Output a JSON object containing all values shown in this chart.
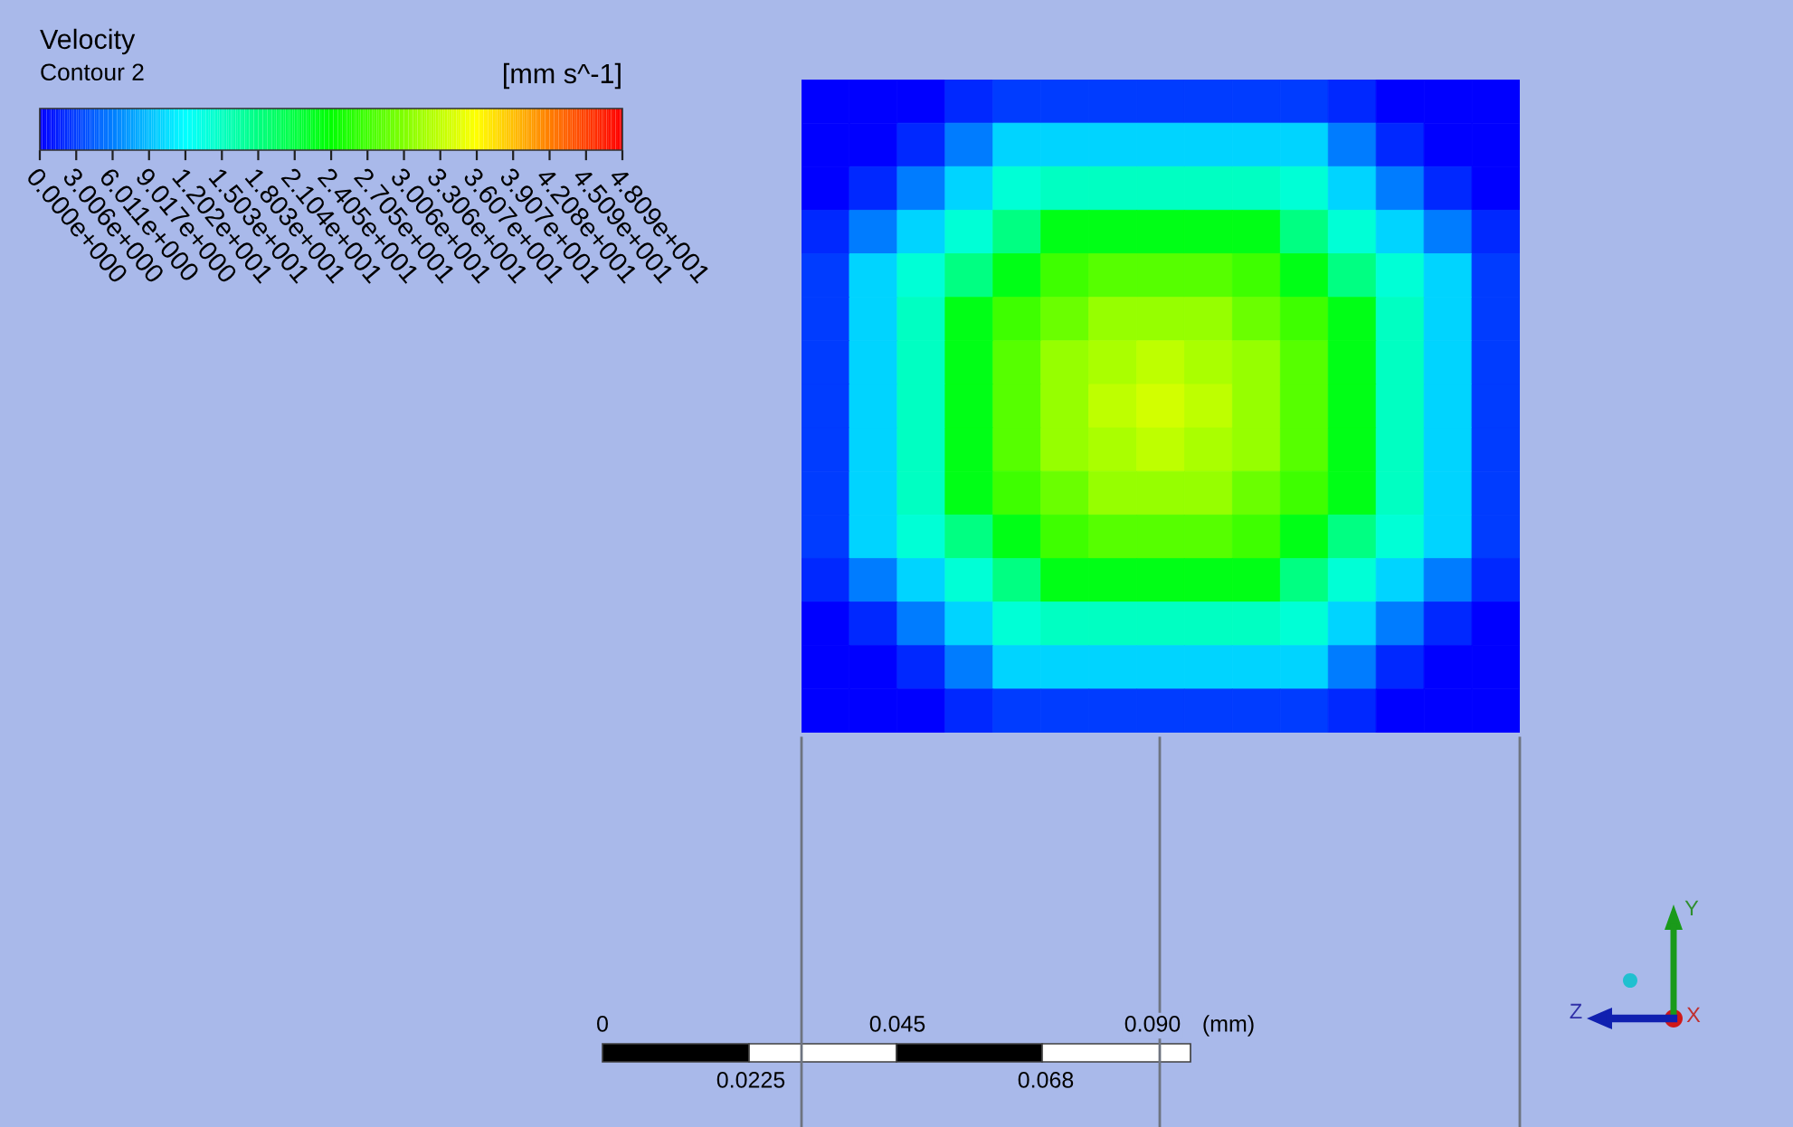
{
  "chart_data": {
    "type": "heatmap",
    "title": "Velocity",
    "subtitle": "Contour 2",
    "clabel": "[mm s^-1]",
    "categories": [
      null,
      null,
      null,
      null,
      null,
      null,
      null,
      null,
      null,
      null,
      null,
      null,
      null,
      null,
      null
    ],
    "y_categories": [
      null,
      null,
      null,
      null,
      null,
      null,
      null,
      null,
      null,
      null,
      null,
      null,
      null,
      null,
      null
    ],
    "cells": [
      [
        0,
        0,
        0,
        2,
        3,
        3,
        3,
        3,
        3,
        3,
        3,
        2,
        0,
        0,
        0
      ],
      [
        0,
        0,
        2,
        6,
        10,
        10,
        10,
        10,
        10,
        10,
        10,
        6,
        2,
        0,
        0
      ],
      [
        0,
        2,
        6,
        10,
        14,
        15,
        15,
        15,
        15,
        15,
        14,
        10,
        6,
        2,
        0
      ],
      [
        2,
        6,
        10,
        14,
        18,
        23,
        23,
        23,
        23,
        23,
        18,
        14,
        10,
        6,
        2
      ],
      [
        3,
        10,
        14,
        18,
        23,
        27,
        28,
        28,
        28,
        27,
        23,
        18,
        14,
        10,
        3
      ],
      [
        3,
        10,
        15,
        23,
        27,
        29,
        31,
        31,
        31,
        29,
        27,
        23,
        15,
        10,
        3
      ],
      [
        3,
        10,
        15,
        23,
        28,
        31,
        32,
        33,
        32,
        31,
        28,
        23,
        15,
        10,
        3
      ],
      [
        3,
        10,
        15,
        23,
        28,
        31,
        33,
        34,
        33,
        31,
        28,
        23,
        15,
        10,
        3
      ],
      [
        3,
        10,
        15,
        23,
        28,
        31,
        32,
        33,
        32,
        31,
        28,
        23,
        15,
        10,
        3
      ],
      [
        3,
        10,
        15,
        23,
        27,
        29,
        31,
        31,
        31,
        29,
        27,
        23,
        15,
        10,
        3
      ],
      [
        3,
        10,
        14,
        18,
        23,
        27,
        28,
        28,
        28,
        27,
        23,
        18,
        14,
        10,
        3
      ],
      [
        2,
        6,
        10,
        14,
        18,
        23,
        23,
        23,
        23,
        23,
        18,
        14,
        10,
        6,
        2
      ],
      [
        0,
        2,
        6,
        10,
        14,
        15,
        15,
        15,
        15,
        15,
        14,
        10,
        6,
        2,
        0
      ],
      [
        0,
        0,
        2,
        6,
        10,
        10,
        10,
        10,
        10,
        10,
        10,
        6,
        2,
        0,
        0
      ],
      [
        0,
        0,
        0,
        2,
        3,
        3,
        3,
        3,
        3,
        3,
        3,
        2,
        0,
        0,
        0
      ]
    ],
    "clim": [
      0,
      48.09
    ],
    "cticks": [
      {
        "value": 0,
        "label": "0.000e+000"
      },
      {
        "value": 3.006,
        "label": "3.006e+000"
      },
      {
        "value": 6.011,
        "label": "6.011e+000"
      },
      {
        "value": 9.017,
        "label": "9.017e+000"
      },
      {
        "value": 12.02,
        "label": "1.202e+001"
      },
      {
        "value": 15.03,
        "label": "1.503e+001"
      },
      {
        "value": 18.03,
        "label": "1.803e+001"
      },
      {
        "value": 21.04,
        "label": "2.104e+001"
      },
      {
        "value": 24.05,
        "label": "2.405e+001"
      },
      {
        "value": 27.05,
        "label": "2.705e+001"
      },
      {
        "value": 30.06,
        "label": "3.006e+001"
      },
      {
        "value": 33.06,
        "label": "3.306e+001"
      },
      {
        "value": 36.07,
        "label": "3.607e+001"
      },
      {
        "value": 39.07,
        "label": "3.907e+001"
      },
      {
        "value": 42.08,
        "label": "4.208e+001"
      },
      {
        "value": 45.09,
        "label": "4.509e+001"
      },
      {
        "value": 48.09,
        "label": "4.809e+001"
      }
    ],
    "tick_labels": false,
    "annotations": [
      "0",
      "0.045",
      "0.090",
      "(mm)",
      "0.0225",
      "0.068",
      "X",
      "Y",
      "Z"
    ]
  }
}
